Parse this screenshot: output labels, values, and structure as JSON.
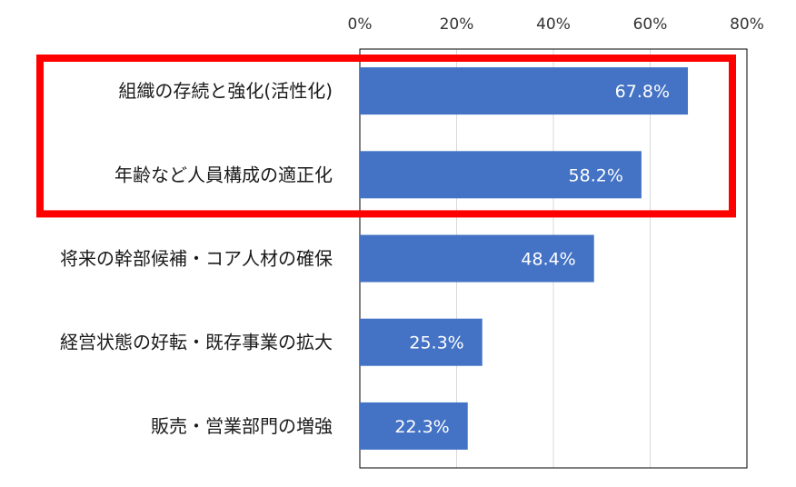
{
  "chart_data": {
    "type": "bar",
    "orientation": "horizontal",
    "categories": [
      "組織の存続と強化(活性化)",
      "年齢など人員構成の適正化",
      "将来の幹部候補・コア人材の確保",
      "経営状態の好転・既存事業の拡大",
      "販売・営業部門の増強"
    ],
    "values": [
      67.8,
      58.2,
      48.4,
      25.3,
      22.3
    ],
    "value_labels": [
      "67.8%",
      "58.2%",
      "48.4%",
      "25.3%",
      "22.3%"
    ],
    "xlim": [
      0,
      80
    ],
    "x_ticks": [
      0,
      20,
      40,
      60,
      80
    ],
    "x_tick_labels": [
      "0%",
      "20%",
      "40%",
      "60%",
      "80%"
    ],
    "x_axis_position": "top",
    "grid": true,
    "bar_color": "#4472C4",
    "highlight": {
      "categories": [
        0,
        1
      ],
      "color": "#FF0000"
    }
  }
}
